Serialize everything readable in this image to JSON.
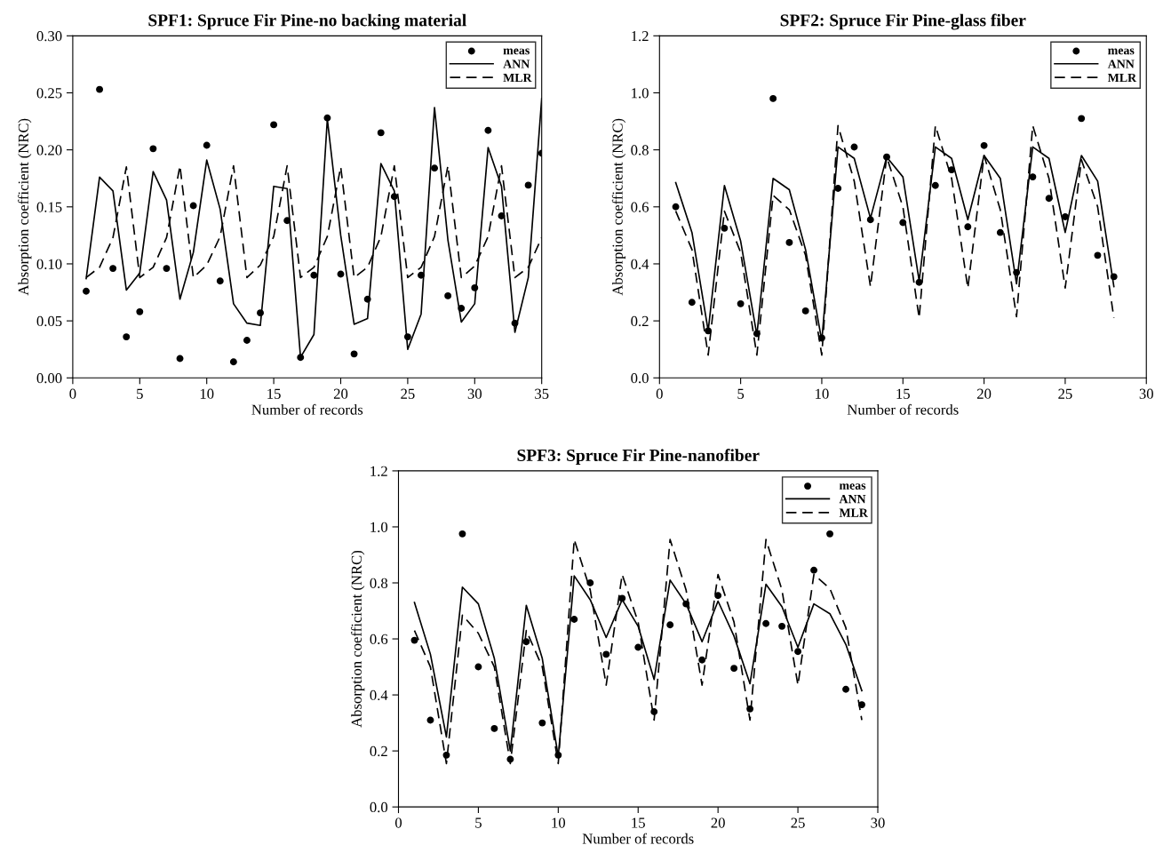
{
  "chart_data": [
    {
      "type": "line",
      "title": "SPF1: Spruce Fir Pine-no backing material",
      "xlabel": "Number of records",
      "ylabel": "Absorption coefficient (NRC)",
      "legend": "top right",
      "x": [
        1,
        2,
        3,
        4,
        5,
        6,
        7,
        8,
        9,
        10,
        11,
        12,
        13,
        14,
        15,
        16,
        17,
        18,
        19,
        20,
        21,
        22,
        23,
        24,
        25,
        26,
        27,
        28,
        29,
        30,
        31,
        32,
        33,
        34,
        35
      ],
      "xlim": [
        0,
        35
      ],
      "xticks": [
        0,
        5,
        10,
        15,
        20,
        25,
        30,
        35
      ],
      "ylim": [
        0,
        0.3
      ],
      "yticks": [
        {
          "value": 0,
          "label": "0.00"
        },
        {
          "value": 0.05,
          "label": "0.05"
        },
        {
          "value": 0.1,
          "label": "0.10"
        },
        {
          "value": 0.15,
          "label": "0.15"
        },
        {
          "value": 0.2,
          "label": "0.20"
        },
        {
          "value": 0.25,
          "label": "0.25"
        },
        {
          "value": 0.3,
          "label": "0.30"
        }
      ],
      "series": [
        {
          "name": "meas",
          "type": "scatter",
          "marker": "circle",
          "color": "#000000",
          "values": [
            0.076,
            0.253,
            0.096,
            0.036,
            0.058,
            0.201,
            0.096,
            0.017,
            0.151,
            0.204,
            0.085,
            0.014,
            0.033,
            0.057,
            0.222,
            0.138,
            0.018,
            0.09,
            0.228,
            0.091,
            0.021,
            0.069,
            0.215,
            0.159,
            0.036,
            0.09,
            0.184,
            0.072,
            0.061,
            0.079,
            0.217,
            0.142,
            0.048,
            0.169,
            0.197
          ]
        },
        {
          "name": "ANN",
          "line_style": "solid",
          "color": "#000000",
          "values": [
            0.087,
            0.176,
            0.164,
            0.077,
            0.092,
            0.181,
            0.156,
            0.069,
            0.11,
            0.191,
            0.148,
            0.065,
            0.048,
            0.046,
            0.168,
            0.166,
            0.018,
            0.038,
            0.227,
            0.125,
            0.047,
            0.052,
            0.188,
            0.164,
            0.025,
            0.056,
            0.237,
            0.121,
            0.049,
            0.065,
            0.202,
            0.168,
            0.04,
            0.088,
            0.245
          ]
        },
        {
          "name": "MLR",
          "line_style": "dashed",
          "color": "#000000",
          "values": [
            0.088,
            0.097,
            0.123,
            0.185,
            0.088,
            0.097,
            0.123,
            0.186,
            0.088,
            0.099,
            0.124,
            0.186,
            0.088,
            0.099,
            0.124,
            0.186,
            0.088,
            0.097,
            0.124,
            0.185,
            0.088,
            0.097,
            0.124,
            0.186,
            0.088,
            0.097,
            0.124,
            0.186,
            0.088,
            0.098,
            0.124,
            0.186,
            0.088,
            0.097,
            0.123
          ]
        }
      ]
    },
    {
      "type": "line",
      "title": "SPF2: Spruce Fir Pine-glass fiber",
      "xlabel": "Number of records",
      "ylabel": "Absorption coefficient (NRC)",
      "legend": "top right",
      "x": [
        1,
        2,
        3,
        4,
        5,
        6,
        7,
        8,
        9,
        10,
        11,
        12,
        13,
        14,
        15,
        16,
        17,
        18,
        19,
        20,
        21,
        22,
        23,
        24,
        25,
        26,
        27,
        28
      ],
      "xlim": [
        0,
        30
      ],
      "xticks": [
        0,
        5,
        10,
        15,
        20,
        25,
        30
      ],
      "ylim": [
        0,
        1.2
      ],
      "yticks": [
        {
          "value": 0,
          "label": "0.0"
        },
        {
          "value": 0.2,
          "label": "0.2"
        },
        {
          "value": 0.4,
          "label": "0.4"
        },
        {
          "value": 0.6,
          "label": "0.6"
        },
        {
          "value": 0.8,
          "label": "0.8"
        },
        {
          "value": 1.0,
          "label": "1.0"
        },
        {
          "value": 1.2,
          "label": "1.2"
        }
      ],
      "series": [
        {
          "name": "meas",
          "type": "scatter",
          "marker": "circle",
          "color": "#000000",
          "values": [
            0.6,
            0.265,
            0.165,
            0.525,
            0.26,
            0.155,
            0.98,
            0.475,
            0.235,
            0.14,
            0.665,
            0.81,
            0.555,
            0.775,
            0.545,
            0.335,
            0.675,
            0.73,
            0.53,
            0.815,
            0.51,
            0.37,
            0.705,
            0.63,
            0.565,
            0.91,
            0.43,
            0.355
          ]
        },
        {
          "name": "ANN",
          "line_style": "solid",
          "color": "#000000",
          "values": [
            0.685,
            0.51,
            0.165,
            0.675,
            0.48,
            0.15,
            0.7,
            0.66,
            0.45,
            0.13,
            0.81,
            0.77,
            0.56,
            0.775,
            0.705,
            0.34,
            0.81,
            0.77,
            0.555,
            0.78,
            0.7,
            0.33,
            0.81,
            0.77,
            0.51,
            0.78,
            0.69,
            0.32
          ]
        },
        {
          "name": "MLR",
          "line_style": "dashed",
          "color": "#000000",
          "values": [
            0.585,
            0.45,
            0.08,
            0.585,
            0.44,
            0.08,
            0.64,
            0.59,
            0.43,
            0.08,
            0.885,
            0.69,
            0.32,
            0.775,
            0.6,
            0.21,
            0.885,
            0.7,
            0.315,
            0.78,
            0.59,
            0.215,
            0.885,
            0.7,
            0.315,
            0.765,
            0.6,
            0.21
          ]
        }
      ]
    },
    {
      "type": "line",
      "title": "SPF3: Spruce Fir Pine-nanofiber",
      "xlabel": "Number of records",
      "ylabel": "Absorption coefficient (NRC)",
      "legend": "top right",
      "x": [
        1,
        2,
        3,
        4,
        5,
        6,
        7,
        8,
        9,
        10,
        11,
        12,
        13,
        14,
        15,
        16,
        17,
        18,
        19,
        20,
        21,
        22,
        23,
        24,
        25,
        26,
        27,
        28,
        29
      ],
      "xlim": [
        0,
        30
      ],
      "xticks": [
        0,
        5,
        10,
        15,
        20,
        25,
        30
      ],
      "ylim": [
        0,
        1.2
      ],
      "yticks": [
        {
          "value": 0,
          "label": "0.0"
        },
        {
          "value": 0.2,
          "label": "0.2"
        },
        {
          "value": 0.4,
          "label": "0.4"
        },
        {
          "value": 0.6,
          "label": "0.6"
        },
        {
          "value": 0.8,
          "label": "0.8"
        },
        {
          "value": 1.0,
          "label": "1.0"
        },
        {
          "value": 1.2,
          "label": "1.2"
        }
      ],
      "series": [
        {
          "name": "meas",
          "type": "scatter",
          "marker": "circle",
          "color": "#000000",
          "values": [
            0.595,
            0.31,
            0.185,
            0.975,
            0.5,
            0.28,
            0.17,
            0.59,
            0.3,
            0.185,
            0.67,
            0.8,
            0.545,
            0.745,
            0.57,
            0.34,
            0.65,
            0.725,
            0.525,
            0.755,
            0.495,
            0.35,
            0.655,
            0.645,
            0.555,
            0.845,
            0.975,
            0.42,
            0.365
          ]
        },
        {
          "name": "ANN",
          "line_style": "solid",
          "color": "#000000",
          "values": [
            0.73,
            0.545,
            0.25,
            0.785,
            0.725,
            0.53,
            0.2,
            0.72,
            0.53,
            0.18,
            0.825,
            0.74,
            0.605,
            0.74,
            0.645,
            0.455,
            0.81,
            0.725,
            0.59,
            0.735,
            0.61,
            0.44,
            0.795,
            0.715,
            0.57,
            0.725,
            0.69,
            0.58,
            0.415
          ]
        },
        {
          "name": "MLR",
          "line_style": "dashed",
          "color": "#000000",
          "values": [
            0.63,
            0.5,
            0.155,
            0.685,
            0.62,
            0.5,
            0.155,
            0.63,
            0.5,
            0.155,
            0.955,
            0.775,
            0.435,
            0.83,
            0.66,
            0.31,
            0.955,
            0.775,
            0.435,
            0.83,
            0.66,
            0.31,
            0.955,
            0.775,
            0.435,
            0.83,
            0.78,
            0.64,
            0.31
          ]
        }
      ]
    }
  ]
}
